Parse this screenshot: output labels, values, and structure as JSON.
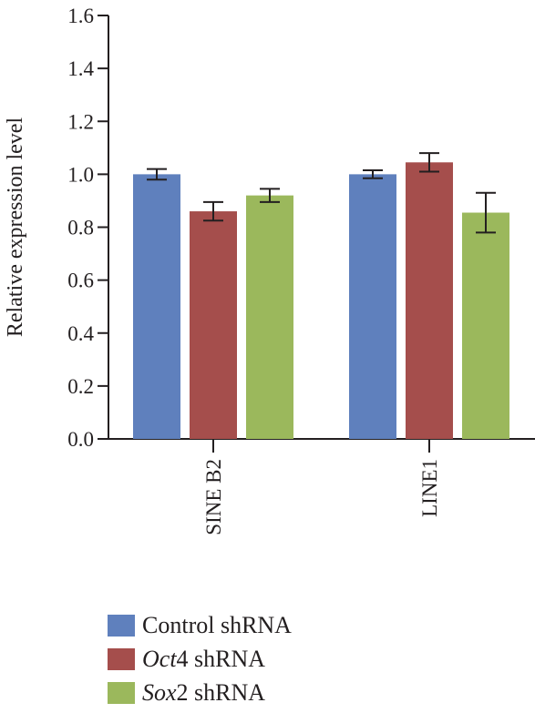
{
  "chart_data": {
    "type": "bar",
    "title": "",
    "xlabel": "",
    "ylabel": "Relative expression level",
    "ylim": [
      0,
      1.6
    ],
    "yticks": [
      "0.0",
      "0.2",
      "0.4",
      "0.6",
      "0.8",
      "1.0",
      "1.2",
      "1.4",
      "1.6"
    ],
    "categories": [
      "SINE B2",
      "LINE1"
    ],
    "grid": false,
    "legend_position": "bottom",
    "series": [
      {
        "name": "Control shRNA",
        "name_italic": "",
        "name_rest": "Control shRNA",
        "color": "#5f80bd",
        "values": [
          1.0,
          1.0
        ],
        "errors": [
          0.02,
          0.015
        ]
      },
      {
        "name": "Oct4 shRNA",
        "name_italic": "Oct",
        "name_rest": "4 shRNA",
        "color": "#a54e4c",
        "values": [
          0.86,
          1.045
        ],
        "errors": [
          0.035,
          0.035
        ]
      },
      {
        "name": "Sox2 shRNA",
        "name_italic": "Sox",
        "name_rest": "2 shRNA",
        "color": "#9bb85c",
        "values": [
          0.92,
          0.855
        ],
        "errors": [
          0.025,
          0.075
        ]
      }
    ]
  }
}
